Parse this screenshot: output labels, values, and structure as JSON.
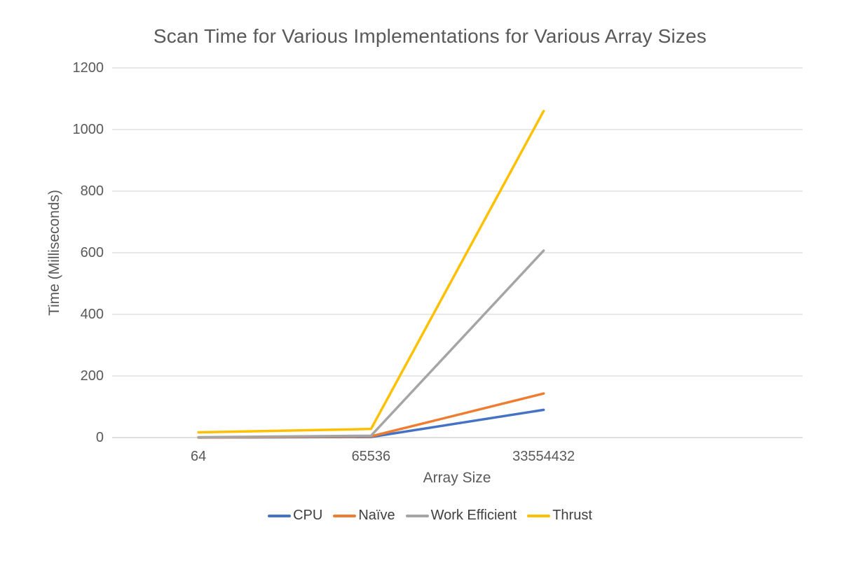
{
  "chart_data": {
    "type": "line",
    "title": "Scan Time for Various Implementations for Various Array Sizes",
    "xlabel": "Array Size",
    "ylabel": "Time (Milliseconds)",
    "categories": [
      "64",
      "65536",
      "33554432"
    ],
    "series": [
      {
        "name": "CPU",
        "color": "#4472C4",
        "values": [
          0.2,
          2,
          90
        ]
      },
      {
        "name": "Naïve",
        "color": "#ED7D31",
        "values": [
          0.3,
          4,
          143
        ]
      },
      {
        "name": "Work Efficient",
        "color": "#A5A5A5",
        "values": [
          1,
          6,
          607
        ]
      },
      {
        "name": "Thrust",
        "color": "#FFC000",
        "values": [
          17,
          28,
          1060
        ]
      }
    ],
    "ylim": [
      0,
      1200
    ],
    "y_ticks": [
      0,
      200,
      400,
      600,
      800,
      1000,
      1200
    ],
    "grid": true,
    "legend_position": "bottom",
    "x_slot_count": 4,
    "colors": {
      "gridline": "#D9D9D9",
      "axis_line": "#C9C9C9",
      "title_text": "#595959",
      "tick_text": "#595959",
      "legend_text": "#404040"
    }
  }
}
